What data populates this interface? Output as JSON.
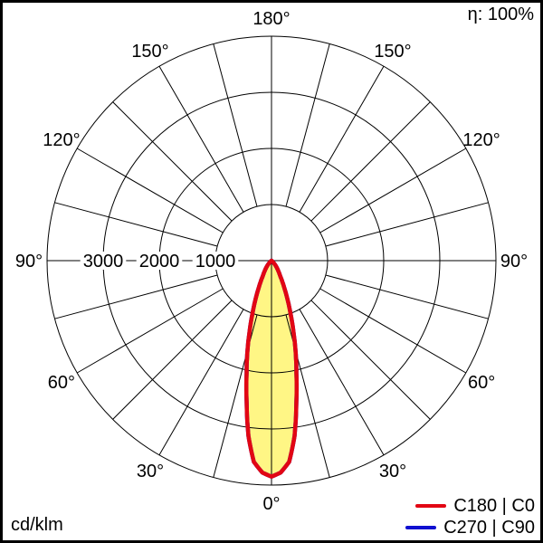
{
  "header": {
    "efficiency_label": "η: 100%"
  },
  "footer": {
    "unit_label": "cd/klm"
  },
  "legend": {
    "entries": [
      {
        "label": "C180 | C0",
        "color": "#e20613"
      },
      {
        "label": "C270 | C90",
        "color": "#1010d0"
      }
    ]
  },
  "chart_data": {
    "type": "polar_intensity_distribution",
    "unit": "cd/klm",
    "efficiency_percent": 100,
    "r_max": 4000,
    "r_rings": [
      1000,
      2000,
      3000,
      4000
    ],
    "ring_labels": [
      {
        "value": 3000,
        "text": "3000"
      },
      {
        "value": 2000,
        "text": "2000"
      },
      {
        "value": 1000,
        "text": "1000"
      }
    ],
    "angle_step_deg": 15,
    "angle_labels": [
      {
        "text": "180°",
        "angle": 180,
        "side": "center"
      },
      {
        "text": "150°",
        "angle": 150,
        "side": "left"
      },
      {
        "text": "150°",
        "angle": 150,
        "side": "right"
      },
      {
        "text": "120°",
        "angle": 120,
        "side": "left"
      },
      {
        "text": "120°",
        "angle": 120,
        "side": "right"
      },
      {
        "text": "90°",
        "angle": 90,
        "side": "left"
      },
      {
        "text": "90°",
        "angle": 90,
        "side": "right"
      },
      {
        "text": "60°",
        "angle": 60,
        "side": "left"
      },
      {
        "text": "60°",
        "angle": 60,
        "side": "right"
      },
      {
        "text": "30°",
        "angle": 30,
        "side": "left"
      },
      {
        "text": "30°",
        "angle": 30,
        "side": "right"
      },
      {
        "text": "0°",
        "angle": 0,
        "side": "center"
      }
    ],
    "fill_color": "#fff685",
    "grid_color": "#000000",
    "series": [
      {
        "name": "C270 | C90",
        "color": "#1010d0",
        "gamma_deg": [
          0,
          2.5,
          5,
          7.5,
          10,
          12.5,
          15,
          17.5,
          20,
          22.5,
          25,
          27.5,
          30,
          32.5,
          35,
          40,
          45,
          50,
          55
        ],
        "values": [
          3850,
          3780,
          3600,
          3150,
          2550,
          2050,
          1650,
          1280,
          980,
          740,
          550,
          410,
          300,
          240,
          190,
          110,
          50,
          15,
          0
        ]
      },
      {
        "name": "C180 | C0",
        "color": "#e20613",
        "gamma_deg": [
          0,
          2.5,
          5,
          7.5,
          10,
          12.5,
          15,
          17.5,
          20,
          22.5,
          25,
          27.5,
          30,
          32.5,
          35,
          40,
          45,
          50,
          55
        ],
        "values": [
          3850,
          3780,
          3600,
          3150,
          2550,
          2050,
          1650,
          1280,
          980,
          740,
          550,
          410,
          300,
          240,
          190,
          110,
          50,
          15,
          0
        ]
      }
    ]
  }
}
